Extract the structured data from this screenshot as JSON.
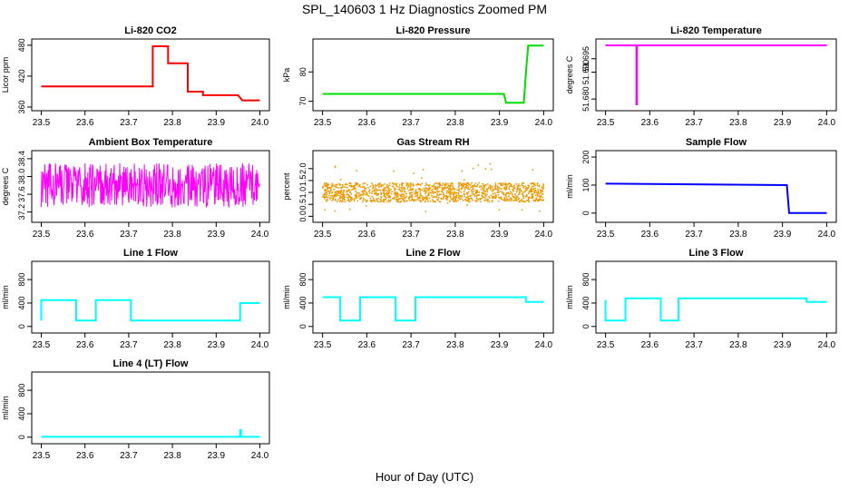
{
  "title": "SPL_140603  1 Hz Diagnostics Zoomed PM",
  "xlabel": "Hour of Day (UTC)",
  "colors": {
    "red": "#ff0000",
    "green": "#00dd00",
    "magenta": "#ff00ff",
    "orange": "#ee9900",
    "blue": "#0000ff",
    "cyan": "#00ffff"
  },
  "chart_data": [
    {
      "type": "line",
      "title": "Li-820 CO2",
      "ylabel": "Licor ppm",
      "color": "red",
      "xlim": [
        23.5,
        24.0
      ],
      "ylim": [
        360,
        485
      ],
      "xticks": [
        "23.5",
        "23.6",
        "23.7",
        "23.8",
        "23.9",
        "24.0"
      ],
      "yticks": [
        "360",
        "420",
        "480"
      ],
      "series": [
        {
          "x": [
            23.5,
            23.755,
            23.755,
            23.79,
            23.79,
            23.835,
            23.835,
            23.87,
            23.87,
            23.95,
            23.96,
            23.965,
            24.0
          ],
          "y": [
            400,
            400,
            478,
            478,
            445,
            445,
            390,
            390,
            383,
            383,
            373,
            373,
            373
          ]
        }
      ]
    },
    {
      "type": "line",
      "title": "Li-820 Pressure",
      "ylabel": "kPa",
      "color": "green",
      "xlim": [
        23.5,
        24.0
      ],
      "ylim": [
        68,
        90
      ],
      "xticks": [
        "23.5",
        "23.6",
        "23.7",
        "23.8",
        "23.9",
        "24.0"
      ],
      "yticks": [
        "70",
        "80"
      ],
      "series": [
        {
          "x": [
            23.5,
            23.91,
            23.915,
            23.955,
            23.96,
            23.965,
            24.0
          ],
          "y": [
            72.5,
            72.5,
            69.5,
            69.5,
            80,
            89,
            89
          ]
        }
      ]
    },
    {
      "type": "line",
      "title": "Li-820 Temperature",
      "ylabel": "degrees C",
      "color": "magenta",
      "xlim": [
        23.5,
        24.0
      ],
      "ylim": [
        51.677,
        51.701
      ],
      "xticks": [
        "23.5",
        "23.6",
        "23.7",
        "23.8",
        "23.9",
        "24.0"
      ],
      "yticks": [
        "51.680",
        "51.690",
        "51.695"
      ],
      "series": [
        {
          "x": [
            23.5,
            23.57,
            23.57,
            23.571,
            23.571,
            24.0
          ],
          "y": [
            51.7,
            51.7,
            51.678,
            51.678,
            51.7,
            51.7
          ]
        }
      ]
    },
    {
      "type": "line",
      "title": "Ambient Box Temperature",
      "ylabel": "degrees C",
      "color": "magenta",
      "xlim": [
        23.5,
        24.0
      ],
      "ylim": [
        37.05,
        38.5
      ],
      "xticks": [
        "23.5",
        "23.6",
        "23.7",
        "23.8",
        "23.9",
        "24.0"
      ],
      "yticks": [
        "37.2",
        "37.6",
        "38.0",
        "38.4"
      ],
      "series": [
        {
          "x": [
            23.5,
            23.6,
            23.7,
            23.8,
            23.9,
            24.0
          ],
          "y": [
            37.9,
            37.9,
            37.9,
            37.9,
            37.9,
            37.9
          ],
          "noise": {
            "low": 37.3,
            "high": 38.3,
            "count": 480
          }
        }
      ]
    },
    {
      "type": "scatter",
      "title": "Gas Stream RH",
      "ylabel": "percent",
      "color": "orange",
      "xlim": [
        23.5,
        24.0
      ],
      "ylim": [
        -0.1,
        2.6
      ],
      "xticks": [
        "23.5",
        "23.6",
        "23.7",
        "23.8",
        "23.9",
        "24.0"
      ],
      "yticks": [
        "0.0",
        "0.5",
        "1.0",
        "1.5",
        "2.0"
      ],
      "series": [
        {
          "x": [
            23.5,
            24.0
          ],
          "y": [
            1.0,
            1.0
          ],
          "noise": {
            "low": 0.6,
            "high": 1.4,
            "count": 1400
          }
        }
      ]
    },
    {
      "type": "line",
      "title": "Sample Flow",
      "ylabel": "ml/min",
      "color": "blue",
      "xlim": [
        23.5,
        24.0
      ],
      "ylim": [
        -20,
        210
      ],
      "xticks": [
        "23.5",
        "23.6",
        "23.7",
        "23.8",
        "23.9",
        "24.0"
      ],
      "yticks": [
        "0",
        "100",
        "200"
      ],
      "series": [
        {
          "x": [
            23.5,
            23.91,
            23.915,
            24.0
          ],
          "y": [
            105,
            100,
            0,
            0
          ]
        }
      ]
    },
    {
      "type": "line",
      "title": "Line 1 Flow",
      "ylabel": "ml/min",
      "color": "cyan",
      "xlim": [
        23.5,
        24.0
      ],
      "ylim": [
        -50,
        1050
      ],
      "xticks": [
        "23.5",
        "23.6",
        "23.7",
        "23.8",
        "23.9",
        "24.0"
      ],
      "yticks": [
        "0",
        "400",
        "800"
      ],
      "series": [
        {
          "x": [
            23.5,
            23.5,
            23.58,
            23.58,
            23.625,
            23.625,
            23.705,
            23.705,
            23.955,
            23.955,
            24.0
          ],
          "y": [
            100,
            450,
            450,
            100,
            100,
            450,
            450,
            100,
            100,
            400,
            400
          ]
        }
      ]
    },
    {
      "type": "line",
      "title": "Line 2 Flow",
      "ylabel": "ml/min",
      "color": "cyan",
      "xlim": [
        23.5,
        24.0
      ],
      "ylim": [
        -50,
        1050
      ],
      "xticks": [
        "23.5",
        "23.6",
        "23.7",
        "23.8",
        "23.9",
        "24.0"
      ],
      "yticks": [
        "0",
        "400",
        "800"
      ],
      "series": [
        {
          "x": [
            23.5,
            23.5,
            23.54,
            23.54,
            23.585,
            23.585,
            23.665,
            23.665,
            23.71,
            23.71,
            23.96,
            23.96,
            24.0
          ],
          "y": [
            500,
            500,
            500,
            100,
            100,
            500,
            500,
            100,
            100,
            500,
            500,
            420,
            420
          ]
        }
      ]
    },
    {
      "type": "line",
      "title": "Line 3 Flow",
      "ylabel": "ml/min",
      "color": "cyan",
      "xlim": [
        23.5,
        24.0
      ],
      "ylim": [
        -50,
        1050
      ],
      "xticks": [
        "23.5",
        "23.6",
        "23.7",
        "23.8",
        "23.9",
        "24.0"
      ],
      "yticks": [
        "0",
        "400",
        "800"
      ],
      "series": [
        {
          "x": [
            23.5,
            23.5,
            23.545,
            23.545,
            23.625,
            23.625,
            23.665,
            23.665,
            23.955,
            23.955,
            24.0
          ],
          "y": [
            450,
            100,
            100,
            480,
            480,
            100,
            100,
            480,
            480,
            420,
            420
          ]
        }
      ]
    },
    {
      "type": "line",
      "title": "Line 4 (LT) Flow",
      "ylabel": "ml/min",
      "color": "cyan",
      "xlim": [
        23.5,
        24.0
      ],
      "ylim": [
        -50,
        1050
      ],
      "xticks": [
        "23.5",
        "23.6",
        "23.7",
        "23.8",
        "23.9",
        "24.0"
      ],
      "yticks": [
        "0",
        "400",
        "800"
      ],
      "series": [
        {
          "x": [
            23.5,
            23.955,
            23.955,
            23.957,
            23.957,
            24.0
          ],
          "y": [
            5,
            5,
            120,
            120,
            5,
            5
          ]
        }
      ]
    }
  ]
}
